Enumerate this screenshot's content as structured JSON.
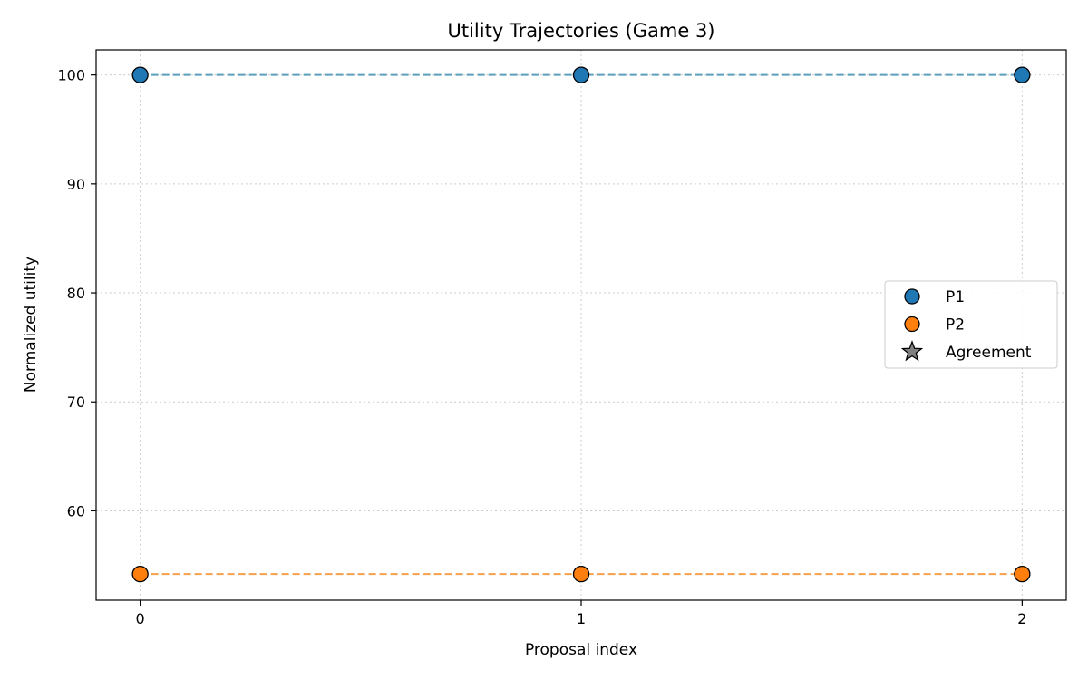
{
  "chart_data": {
    "type": "line",
    "title": "Utility Trajectories (Game 3)",
    "xlabel": "Proposal index",
    "ylabel": "Normalized utility",
    "x": [
      0,
      1,
      2
    ],
    "xticks": [
      "0",
      "1",
      "2"
    ],
    "yticks": [
      "60",
      "70",
      "80",
      "90",
      "100"
    ],
    "xlim": [
      -0.1,
      2.1
    ],
    "ylim": [
      51.8,
      102.3
    ],
    "grid": true,
    "legend_position": "center-right",
    "series": [
      {
        "name": "P1",
        "values": [
          100,
          100,
          100
        ],
        "marker_color": "#1f77b4",
        "line_color": "#5b9fbf",
        "line_style": "dashed"
      },
      {
        "name": "P2",
        "values": [
          54.2,
          54.2,
          54.2
        ],
        "marker_color": "#ff7f0e",
        "line_color": "#f5a04a",
        "line_style": "dashed"
      }
    ],
    "legend": [
      {
        "label": "P1",
        "marker": "circle",
        "color": "#1f77b4"
      },
      {
        "label": "P2",
        "marker": "circle",
        "color": "#ff7f0e"
      },
      {
        "label": "Agreement",
        "marker": "star",
        "color": "#808080"
      }
    ]
  }
}
